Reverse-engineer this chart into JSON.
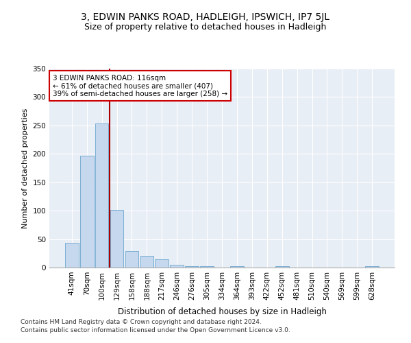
{
  "title": "3, EDWIN PANKS ROAD, HADLEIGH, IPSWICH, IP7 5JL",
  "subtitle": "Size of property relative to detached houses in Hadleigh",
  "xlabel": "Distribution of detached houses by size in Hadleigh",
  "ylabel": "Number of detached properties",
  "footnote1": "Contains HM Land Registry data © Crown copyright and database right 2024.",
  "footnote2": "Contains public sector information licensed under the Open Government Licence v3.0.",
  "bin_labels": [
    "41sqm",
    "70sqm",
    "100sqm",
    "129sqm",
    "158sqm",
    "188sqm",
    "217sqm",
    "246sqm",
    "276sqm",
    "305sqm",
    "334sqm",
    "364sqm",
    "393sqm",
    "422sqm",
    "452sqm",
    "481sqm",
    "510sqm",
    "540sqm",
    "569sqm",
    "599sqm",
    "628sqm"
  ],
  "bar_values": [
    44,
    197,
    253,
    101,
    29,
    20,
    14,
    5,
    3,
    3,
    0,
    3,
    0,
    0,
    3,
    0,
    0,
    0,
    0,
    0,
    3
  ],
  "bar_color": "#c5d8ee",
  "bar_edge_color": "#7bafd4",
  "vline_color": "#aa0000",
  "vline_x_index": 2.5,
  "annotation_text": "3 EDWIN PANKS ROAD: 116sqm\n← 61% of detached houses are smaller (407)\n39% of semi-detached houses are larger (258) →",
  "annotation_box_facecolor": "#ffffff",
  "annotation_box_edgecolor": "#cc0000",
  "ylim": [
    0,
    350
  ],
  "yticks": [
    0,
    50,
    100,
    150,
    200,
    250,
    300,
    350
  ],
  "plot_bg_color": "#e8eef5",
  "grid_color": "#ffffff",
  "title_fontsize": 10,
  "subtitle_fontsize": 9,
  "axis_label_fontsize": 8,
  "tick_fontsize": 7.5,
  "annotation_fontsize": 7.5,
  "footnote_fontsize": 6.5
}
